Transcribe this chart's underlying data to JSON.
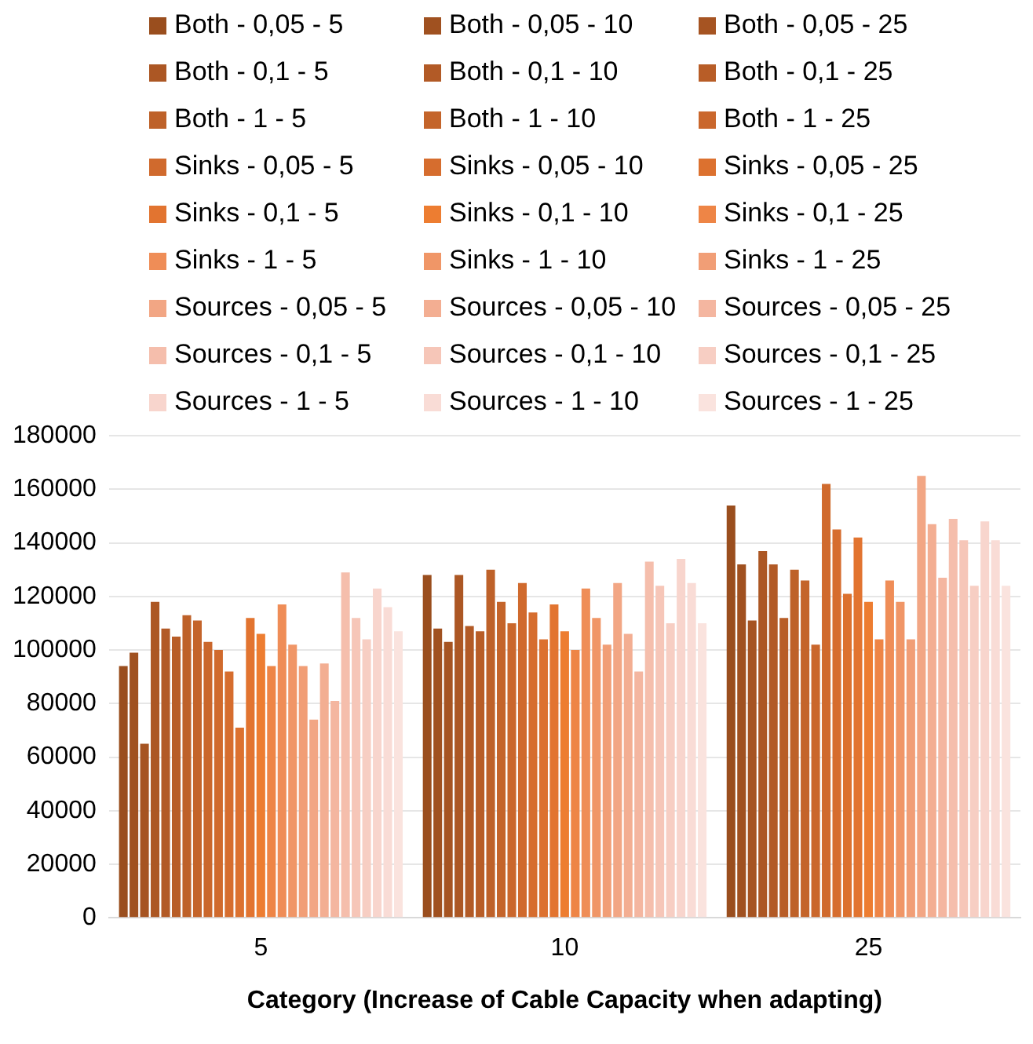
{
  "chart_data": {
    "type": "bar",
    "xlabel": "Category (Increase of Cable Capacity when adapting)",
    "categories": [
      "5",
      "10",
      "25"
    ],
    "ylim": [
      0,
      180000
    ],
    "yticks": [
      0,
      20000,
      40000,
      60000,
      80000,
      100000,
      120000,
      140000,
      160000,
      180000
    ],
    "grid": "y",
    "legend": "top",
    "series": [
      {
        "name": "Both - 0,05 - 5",
        "color": "#9a4e1e",
        "values": [
          94000,
          128000,
          154000
        ]
      },
      {
        "name": "Both - 0,05 - 10",
        "color": "#a05120",
        "values": [
          99000,
          108000,
          132000
        ]
      },
      {
        "name": "Both - 0,05 - 25",
        "color": "#a65422",
        "values": [
          65000,
          103000,
          111000
        ]
      },
      {
        "name": "Both - 0,1 - 5",
        "color": "#ac5724",
        "values": [
          118000,
          128000,
          137000
        ]
      },
      {
        "name": "Both - 0,1 - 10",
        "color": "#b25a26",
        "values": [
          108000,
          109000,
          132000
        ]
      },
      {
        "name": "Both - 0,1 - 25",
        "color": "#b85d27",
        "values": [
          105000,
          107000,
          112000
        ]
      },
      {
        "name": "Both - 1 - 5",
        "color": "#be6129",
        "values": [
          113000,
          130000,
          130000
        ]
      },
      {
        "name": "Both - 1 - 10",
        "color": "#c4642a",
        "values": [
          111000,
          118000,
          126000
        ]
      },
      {
        "name": "Both - 1 - 25",
        "color": "#ca672c",
        "values": [
          103000,
          110000,
          102000
        ]
      },
      {
        "name": "Sinks - 0,05 - 5",
        "color": "#d06a2d",
        "values": [
          100000,
          125000,
          162000
        ]
      },
      {
        "name": "Sinks - 0,05 - 10",
        "color": "#d66d2e",
        "values": [
          92000,
          114000,
          145000
        ]
      },
      {
        "name": "Sinks - 0,05 - 25",
        "color": "#dc712f",
        "values": [
          71000,
          104000,
          121000
        ]
      },
      {
        "name": "Sinks - 0,1 - 5",
        "color": "#e27430",
        "values": [
          112000,
          117000,
          142000
        ]
      },
      {
        "name": "Sinks - 0,1 - 10",
        "color": "#ed7d31",
        "values": [
          106000,
          107000,
          118000
        ]
      },
      {
        "name": "Sinks - 0,1 - 25",
        "color": "#ee8546",
        "values": [
          94000,
          100000,
          104000
        ]
      },
      {
        "name": "Sinks - 1 - 5",
        "color": "#ef8d57",
        "values": [
          117000,
          123000,
          126000
        ]
      },
      {
        "name": "Sinks - 1 - 10",
        "color": "#f09667",
        "values": [
          102000,
          112000,
          118000
        ]
      },
      {
        "name": "Sinks - 1 - 25",
        "color": "#f19e76",
        "values": [
          94000,
          102000,
          104000
        ]
      },
      {
        "name": "Sources - 0,05 - 5",
        "color": "#f2a684",
        "values": [
          74000,
          125000,
          165000
        ]
      },
      {
        "name": "Sources - 0,05 - 10",
        "color": "#f3ae92",
        "values": [
          95000,
          106000,
          147000
        ]
      },
      {
        "name": "Sources - 0,05 - 25",
        "color": "#f4b6a0",
        "values": [
          81000,
          92000,
          127000
        ]
      },
      {
        "name": "Sources - 0,1 - 5",
        "color": "#f5beac",
        "values": [
          129000,
          133000,
          149000
        ]
      },
      {
        "name": "Sources - 0,1 - 10",
        "color": "#f6c6b8",
        "values": [
          112000,
          124000,
          141000
        ]
      },
      {
        "name": "Sources - 0,1 - 25",
        "color": "#f7cec3",
        "values": [
          104000,
          110000,
          124000
        ]
      },
      {
        "name": "Sources - 1 - 5",
        "color": "#f8d5cd",
        "values": [
          123000,
          134000,
          148000
        ]
      },
      {
        "name": "Sources - 1 - 10",
        "color": "#f9dcd6",
        "values": [
          116000,
          125000,
          141000
        ]
      },
      {
        "name": "Sources - 1 - 25",
        "color": "#fae3de",
        "values": [
          107000,
          110000,
          124000
        ]
      }
    ]
  }
}
